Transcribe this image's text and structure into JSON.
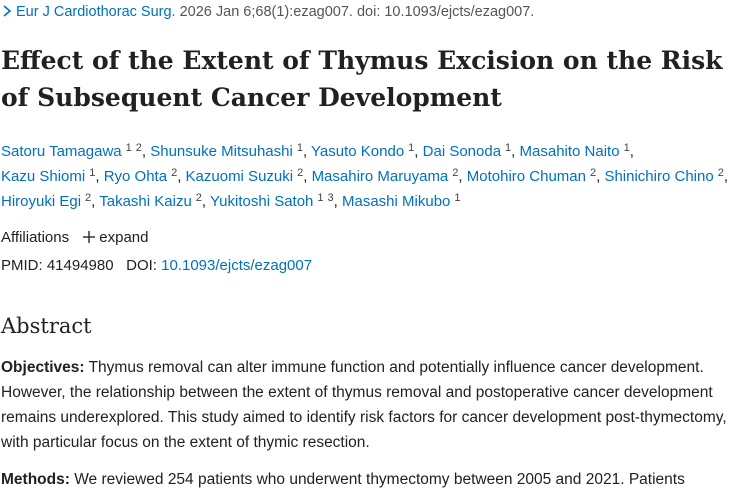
{
  "citation": {
    "journal": "Eur J Cardiothorac Surg.",
    "details": "2026 Jan 6;68(1):ezag007. doi: 10.1093/ejcts/ezag007."
  },
  "title": "Effect of the Extent of Thymus Excision on the Risk of Subsequent Cancer Development",
  "authors": [
    {
      "name": "Satoru Tamagawa",
      "affiliations": [
        "1",
        "2"
      ]
    },
    {
      "name": "Shunsuke Mitsuhashi",
      "affiliations": [
        "1"
      ]
    },
    {
      "name": "Yasuto Kondo",
      "affiliations": [
        "1"
      ]
    },
    {
      "name": "Dai Sonoda",
      "affiliations": [
        "1"
      ]
    },
    {
      "name": "Masahito Naito",
      "affiliations": [
        "1"
      ]
    },
    {
      "name": "Kazu Shiomi",
      "affiliations": [
        "1"
      ]
    },
    {
      "name": "Ryo Ohta",
      "affiliations": [
        "2"
      ]
    },
    {
      "name": "Kazuomi Suzuki",
      "affiliations": [
        "2"
      ]
    },
    {
      "name": "Masahiro Maruyama",
      "affiliations": [
        "2"
      ]
    },
    {
      "name": "Motohiro Chuman",
      "affiliations": [
        "2"
      ]
    },
    {
      "name": "Shinichiro Chino",
      "affiliations": [
        "2"
      ]
    },
    {
      "name": "Hiroyuki Egi",
      "affiliations": [
        "2"
      ]
    },
    {
      "name": "Takashi Kaizu",
      "affiliations": [
        "2"
      ]
    },
    {
      "name": "Yukitoshi Satoh",
      "affiliations": [
        "1",
        "3"
      ]
    },
    {
      "name": "Masashi Mikubo",
      "affiliations": [
        "1"
      ]
    }
  ],
  "affiliations_panel": {
    "label": "Affiliations",
    "toggle": "expand"
  },
  "identifiers": {
    "pmid_label": "PMID:",
    "pmid": "41494980",
    "doi_label": "DOI:",
    "doi": "10.1093/ejcts/ezag007"
  },
  "abstract": {
    "heading": "Abstract",
    "sections": [
      {
        "label": "Objectives:",
        "text": "Thymus removal can alter immune function and potentially influence cancer development. However, the relationship between the extent of thymus removal and postoperative cancer development remains underexplored. This study aimed to identify risk factors for cancer development post-thymectomy, with particular focus on the extent of thymic resection."
      },
      {
        "label": "Methods:",
        "text": "We reviewed 254 patients who underwent thymectomy between 2005 and 2021. Patients"
      }
    ]
  }
}
